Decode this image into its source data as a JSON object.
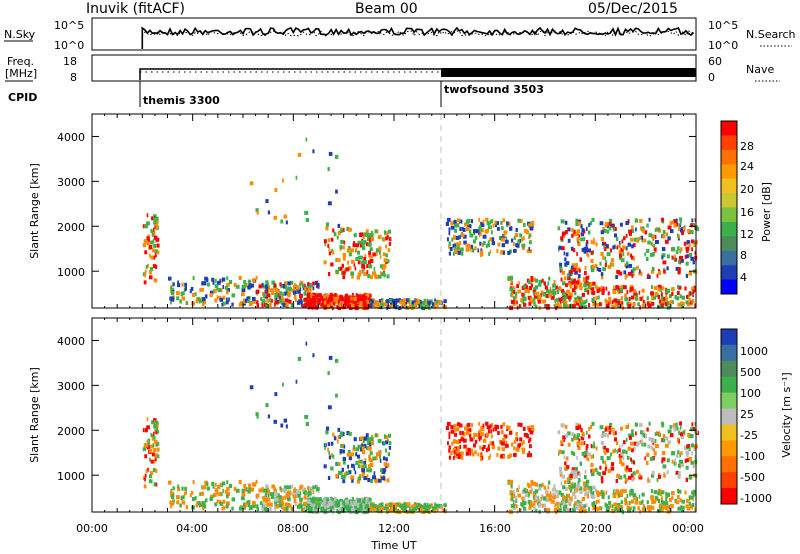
{
  "header": {
    "station": "Inuvik (fitACF)",
    "beam": "Beam 00",
    "date": "05/Dec/2015"
  },
  "colors": {
    "echo_red": "#ff0000",
    "echo_orange": "#ff8c00",
    "echo_green": "#3ab14a",
    "echo_blue": "#1e3fb4",
    "echo_gray": "#bdbdbd"
  },
  "chart_data": [
    {
      "type": "line",
      "panel": "noise",
      "left_label": "N.Sky",
      "right_label": "N.Search",
      "left_ticks": [
        "10^5",
        "10^0"
      ],
      "right_ticks": [
        "10^5",
        "10^0"
      ],
      "y_log": true
    },
    {
      "type": "line",
      "panel": "frequency",
      "left_label": "Freq.",
      "left_units": "[MHz]",
      "right_label": "Nave",
      "left_ticks": [
        "18",
        "8"
      ],
      "right_ticks": [
        "60",
        "0"
      ]
    },
    {
      "type": "table",
      "panel": "cpid",
      "label": "CPID",
      "modes": [
        {
          "name": "themis 3300",
          "start": "02:00"
        },
        {
          "name": "twofsound 3503",
          "start": "14:00"
        }
      ]
    },
    {
      "type": "heatmap",
      "panel": "power",
      "ylabel": "Slant Range [km]",
      "y_ticks": [
        "1000",
        "2000",
        "3000",
        "4000"
      ],
      "ylim": [
        180,
        4500
      ],
      "colorbar_label": "Power [dB]",
      "colorbar_ticks": [
        "4",
        "8",
        "12",
        "16",
        "20",
        "24",
        "28"
      ],
      "colorbar_colors": [
        "#0000ff",
        "#1e3fb4",
        "#3a6ea0",
        "#4b8c5a",
        "#3ab14a",
        "#7dc23c",
        "#c8c832",
        "#f0c020",
        "#ff9a00",
        "#ff7000",
        "#ff4000",
        "#ff0000"
      ]
    },
    {
      "type": "heatmap",
      "panel": "velocity",
      "ylabel": "Slant Range [km]",
      "y_ticks": [
        "1000",
        "2000",
        "3000",
        "4000"
      ],
      "ylim": [
        180,
        4500
      ],
      "colorbar_label": "Velocity [m s⁻¹]",
      "colorbar_ticks": [
        "1000",
        "500",
        "100",
        "25",
        "-25",
        "-100",
        "-500",
        "-1000"
      ],
      "colorbar_colors": [
        "#1e3fb4",
        "#3a6ea0",
        "#4b8c5a",
        "#3ab14a",
        "#7dd060",
        "#bdbdbd",
        "#f0c020",
        "#ff9a00",
        "#ff7000",
        "#ff4000",
        "#ff0000"
      ],
      "xlabel": "Time UT",
      "x_ticks": [
        "00:00",
        "04:00",
        "08:00",
        "12:00",
        "16:00",
        "20:00",
        "00:00"
      ]
    }
  ]
}
